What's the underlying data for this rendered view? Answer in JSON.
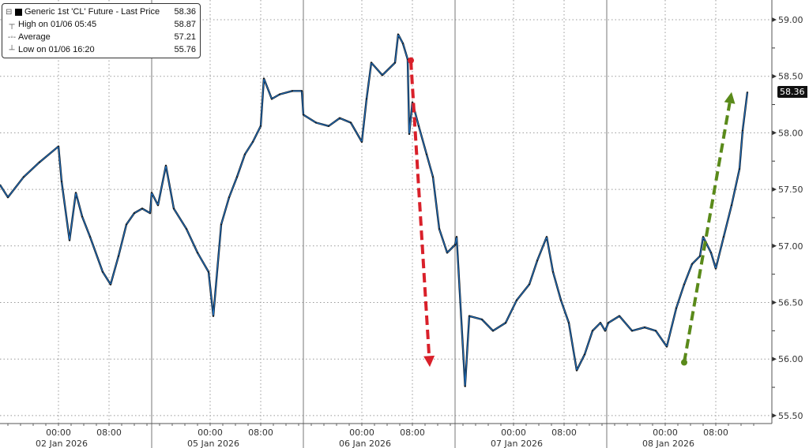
{
  "chart_data": {
    "type": "line",
    "title": "",
    "legend": {
      "placement": "top-left",
      "series_label": "Generic 1st 'CL' Future - Last Price",
      "last_price": "58.36",
      "high_label": "High on 01/06 05:45",
      "high_value": "58.87",
      "average_label": "Average",
      "average_value": "57.21",
      "low_label": "Low on 01/06 16:20",
      "low_value": "55.76"
    },
    "ylim": [
      55.5,
      59.0
    ],
    "y_ticks": [
      "59.00",
      "58.50",
      "58.00",
      "57.50",
      "57.00",
      "56.50",
      "56.00",
      "55.50"
    ],
    "y_axis_position": "right",
    "x_days": [
      "01/02",
      "01/05",
      "01/06",
      "01/07",
      "01/08"
    ],
    "x_day_labels": [
      "02 Jan 2026",
      "05 Jan 2026",
      "06 Jan 2026",
      "07 Jan 2026",
      "08 Jan 2026"
    ],
    "x_time_labels": [
      "00:00",
      "08:00"
    ],
    "grid": true,
    "line_color": "#1f6fbf",
    "points": [
      [
        "01/01",
        "14:45",
        57.54
      ],
      [
        "01/01",
        "16:00",
        57.43
      ],
      [
        "01/01",
        "18:30",
        57.61
      ],
      [
        "01/01",
        "21:00",
        57.74
      ],
      [
        "01/02",
        "00:00",
        57.88
      ],
      [
        "01/02",
        "00:30",
        57.57
      ],
      [
        "01/02",
        "01:45",
        57.05
      ],
      [
        "01/02",
        "02:45",
        57.47
      ],
      [
        "01/02",
        "03:45",
        57.26
      ],
      [
        "01/02",
        "05:00",
        57.08
      ],
      [
        "01/02",
        "07:00",
        56.77
      ],
      [
        "01/02",
        "08:15",
        56.66
      ],
      [
        "01/02",
        "09:30",
        56.91
      ],
      [
        "01/02",
        "10:45",
        57.19
      ],
      [
        "01/02",
        "12:00",
        57.29
      ],
      [
        "01/02",
        "13:15",
        57.33
      ],
      [
        "01/02",
        "14:30",
        57.29
      ],
      [
        "01/04",
        "14:45",
        57.47
      ],
      [
        "01/04",
        "15:45",
        57.36
      ],
      [
        "01/04",
        "17:00",
        57.71
      ],
      [
        "01/04",
        "18:15",
        57.33
      ],
      [
        "01/04",
        "20:15",
        57.15
      ],
      [
        "01/04",
        "22:00",
        56.94
      ],
      [
        "01/04",
        "23:45",
        56.77
      ],
      [
        "01/05",
        "00:30",
        56.38
      ],
      [
        "01/05",
        "01:45",
        57.19
      ],
      [
        "01/05",
        "03:00",
        57.43
      ],
      [
        "01/05",
        "04:15",
        57.61
      ],
      [
        "01/05",
        "05:30",
        57.81
      ],
      [
        "01/05",
        "06:45",
        57.92
      ],
      [
        "01/05",
        "08:00",
        58.06
      ],
      [
        "01/05",
        "08:30",
        58.48
      ],
      [
        "01/05",
        "09:45",
        58.3
      ],
      [
        "01/05",
        "11:00",
        58.34
      ],
      [
        "01/05",
        "13:00",
        58.37
      ],
      [
        "01/05",
        "14:30",
        58.37
      ],
      [
        "01/05",
        "14:45",
        58.16
      ],
      [
        "01/05",
        "16:45",
        58.09
      ],
      [
        "01/05",
        "18:45",
        58.06
      ],
      [
        "01/05",
        "20:30",
        58.13
      ],
      [
        "01/05",
        "22:15",
        58.09
      ],
      [
        "01/06",
        "00:00",
        57.92
      ],
      [
        "01/06",
        "00:45",
        58.3
      ],
      [
        "01/06",
        "01:30",
        58.62
      ],
      [
        "01/06",
        "03:15",
        58.51
      ],
      [
        "01/06",
        "05:15",
        58.62
      ],
      [
        "01/06",
        "05:45",
        58.87
      ],
      [
        "01/06",
        "06:30",
        58.79
      ],
      [
        "01/06",
        "07:15",
        58.65
      ],
      [
        "01/06",
        "07:30",
        57.99
      ],
      [
        "01/06",
        "08:00",
        58.27
      ],
      [
        "01/06",
        "09:00",
        58.06
      ],
      [
        "01/06",
        "10:15",
        57.81
      ],
      [
        "01/06",
        "11:15",
        57.61
      ],
      [
        "01/06",
        "12:15",
        57.15
      ],
      [
        "01/06",
        "13:30",
        56.94
      ],
      [
        "01/06",
        "14:45",
        57.01
      ],
      [
        "01/06",
        "15:00",
        57.08
      ],
      [
        "01/06",
        "16:20",
        55.76
      ],
      [
        "01/06",
        "17:00",
        56.38
      ],
      [
        "01/06",
        "19:00",
        56.35
      ],
      [
        "01/06",
        "20:45",
        56.25
      ],
      [
        "01/06",
        "22:45",
        56.32
      ],
      [
        "01/07",
        "00:30",
        56.52
      ],
      [
        "01/07",
        "02:30",
        56.66
      ],
      [
        "01/07",
        "03:45",
        56.87
      ],
      [
        "01/07",
        "05:15",
        57.08
      ],
      [
        "01/07",
        "06:15",
        56.77
      ],
      [
        "01/07",
        "07:30",
        56.52
      ],
      [
        "01/07",
        "08:45",
        56.32
      ],
      [
        "01/07",
        "10:00",
        55.9
      ],
      [
        "01/07",
        "11:15",
        56.04
      ],
      [
        "01/07",
        "12:30",
        56.25
      ],
      [
        "01/07",
        "13:45",
        56.32
      ],
      [
        "01/07",
        "14:30",
        56.25
      ],
      [
        "01/07",
        "15:00",
        56.32
      ],
      [
        "01/07",
        "16:45",
        56.38
      ],
      [
        "01/07",
        "18:45",
        56.25
      ],
      [
        "01/07",
        "20:45",
        56.28
      ],
      [
        "01/07",
        "22:30",
        56.25
      ],
      [
        "01/08",
        "00:15",
        56.11
      ],
      [
        "01/08",
        "01:45",
        56.45
      ],
      [
        "01/08",
        "03:00",
        56.66
      ],
      [
        "01/08",
        "04:15",
        56.84
      ],
      [
        "01/08",
        "05:30",
        56.91
      ],
      [
        "01/08",
        "06:00",
        57.08
      ],
      [
        "01/08",
        "07:15",
        56.94
      ],
      [
        "01/08",
        "08:00",
        56.8
      ],
      [
        "01/08",
        "09:15",
        57.08
      ],
      [
        "01/08",
        "10:30",
        57.36
      ],
      [
        "01/08",
        "11:45",
        57.68
      ],
      [
        "01/08",
        "12:15",
        58.02
      ],
      [
        "01/08",
        "13:00",
        58.36
      ]
    ],
    "annotations": [
      {
        "kind": "dashed-arrow",
        "color": "#d9202a",
        "from": [
          "01/06",
          "07:45",
          58.64
        ],
        "to": [
          "01/06",
          "10:45",
          55.93
        ]
      },
      {
        "kind": "dashed-arrow",
        "color": "#5a8a1a",
        "from": [
          "01/08",
          "03:00",
          55.97
        ],
        "to": [
          "01/08",
          "10:30",
          58.36
        ]
      }
    ]
  }
}
